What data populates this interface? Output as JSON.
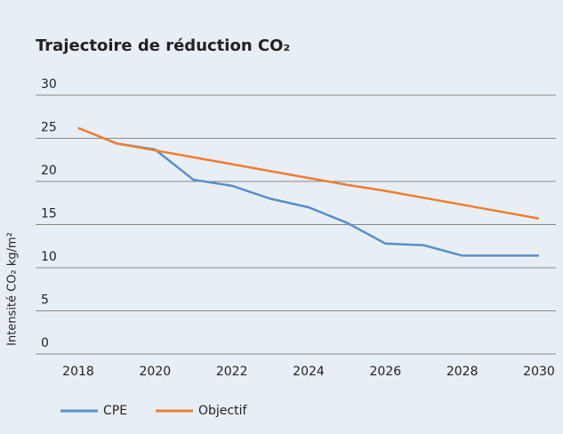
{
  "chart_data": {
    "type": "line",
    "title": "Trajectoire de réduction CO₂",
    "y_label": "Intensité CO₂ kg/m²",
    "x": [
      2018,
      2019,
      2020,
      2021,
      2022,
      2023,
      2024,
      2025,
      2026,
      2027,
      2028,
      2029,
      2030
    ],
    "series": [
      {
        "name": "CPE",
        "color": "#5b8fc7",
        "values": [
          26.2,
          24.4,
          23.7,
          20.2,
          19.5,
          18,
          17,
          15.2,
          12.8,
          12.6,
          11.4,
          11.4,
          11.4
        ]
      },
      {
        "name": "Objectif",
        "color": "#ed7d31",
        "values": [
          26.2,
          24.4,
          23.6,
          22.8,
          22.0,
          21.2,
          20.4,
          19.6,
          18.9,
          18.1,
          17.3,
          16.5,
          15.7
        ]
      }
    ],
    "xlim": [
      2018,
      2030
    ],
    "xticks": [
      2018,
      2020,
      2022,
      2024,
      2026,
      2028,
      2030
    ],
    "ylim": [
      0,
      30
    ],
    "yticks": [
      0,
      5,
      10,
      15,
      20,
      25,
      30
    ],
    "grid": true,
    "legend": "bottom"
  }
}
